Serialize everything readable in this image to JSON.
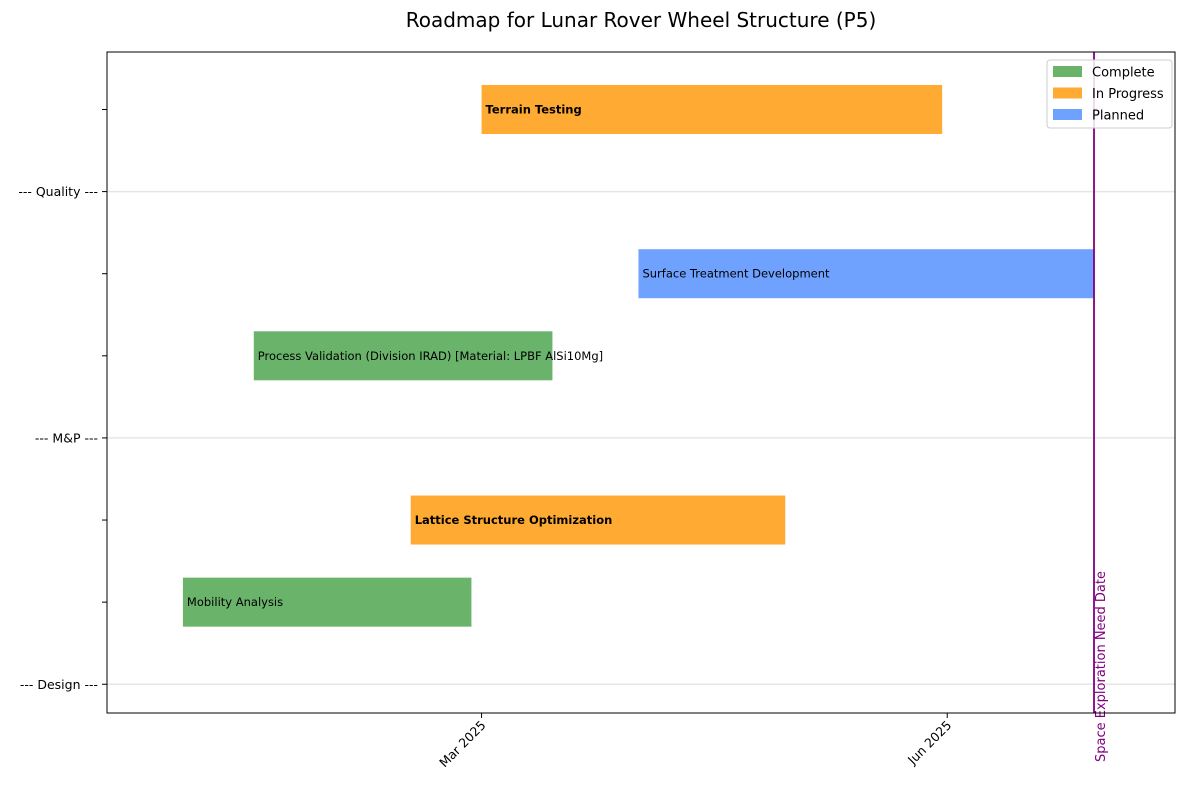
{
  "chart_data": {
    "type": "gantt",
    "title": "Roadmap for Lunar Rover Wheel Structure (P5)",
    "xlabel": "",
    "ylabel": "",
    "x_axis": {
      "type": "date",
      "range": [
        "2024-12-17",
        "2025-07-16"
      ],
      "ticks": [
        {
          "date": "2025-03-01",
          "label": "Mar 2025"
        },
        {
          "date": "2025-06-01",
          "label": "Jun 2025"
        }
      ]
    },
    "y_axis": {
      "range": [
        -0.35,
        7.7
      ],
      "category_ticks": [
        {
          "pos": 0,
          "label": "--- Design ---"
        },
        {
          "pos": 3,
          "label": "--- M&P ---"
        },
        {
          "pos": 6,
          "label": "--- Quality ---"
        }
      ],
      "minor_ticks": [
        1,
        2,
        4,
        5,
        7
      ]
    },
    "status_colors": {
      "Complete": "#6ab36b",
      "In Progress": "#ffaa33",
      "Planned": "#6fa1fe"
    },
    "tasks": [
      {
        "label": "Mobility Analysis",
        "row": 1,
        "start": "2025-01-01",
        "end": "2025-02-27",
        "status": "Complete",
        "bold": false
      },
      {
        "label": "Lattice Structure Optimization",
        "row": 2,
        "start": "2025-02-15",
        "end": "2025-04-30",
        "status": "In Progress",
        "bold": true
      },
      {
        "label": "Process Validation (Division IRAD) [Material: LPBF AlSi10Mg]",
        "row": 4,
        "start": "2025-01-15",
        "end": "2025-03-15",
        "status": "Complete",
        "bold": false
      },
      {
        "label": "Surface Treatment Development",
        "row": 5,
        "start": "2025-04-01",
        "end": "2025-06-30",
        "status": "Planned",
        "bold": false
      },
      {
        "label": "Terrain Testing",
        "row": 7,
        "start": "2025-03-01",
        "end": "2025-05-31",
        "status": "In Progress",
        "bold": true
      }
    ],
    "markers": [
      {
        "label": "Space Exploration Need Date",
        "date": "2025-06-30",
        "color": "#800080"
      }
    ],
    "legend": {
      "placement": "top-right",
      "entries": [
        "Complete",
        "In Progress",
        "Planned"
      ]
    },
    "grid": {
      "horizontal_at_categories": true
    }
  }
}
